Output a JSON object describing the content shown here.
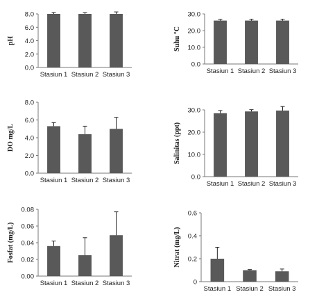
{
  "chart_data": [
    {
      "type": "bar",
      "ylabel": "pH",
      "categories": [
        "Stasiun 1",
        "Stasiun 2",
        "Stasiun 3"
      ],
      "values": [
        8.0,
        8.0,
        8.0
      ],
      "errors": [
        0.2,
        0.2,
        0.3
      ],
      "ylim": [
        0,
        8.0
      ],
      "yticks": [
        "0.0",
        "2.0",
        "4.0",
        "6.0",
        "8.0"
      ],
      "color": "#595959"
    },
    {
      "type": "bar",
      "ylabel": "Suhu °C",
      "categories": [
        "Stasiun 1",
        "Stasiun 2",
        "Stasiun 3"
      ],
      "values": [
        26.0,
        26.0,
        26.0
      ],
      "errors": [
        0.7,
        0.8,
        0.8
      ],
      "ylim": [
        0,
        30.0
      ],
      "yticks": [
        "0.0",
        "10.0",
        "20.0",
        "30.0"
      ],
      "color": "#595959"
    },
    {
      "type": "bar",
      "ylabel": "DO mg/L",
      "categories": [
        "Stasiun 1",
        "Stasiun 2",
        "Stasiun 3"
      ],
      "values": [
        5.3,
        4.4,
        5.0
      ],
      "errors": [
        0.4,
        0.9,
        1.3
      ],
      "ylim": [
        0,
        8.0
      ],
      "yticks": [
        "0.0",
        "2.0",
        "4.0",
        "6.0",
        "8.0"
      ],
      "color": "#595959"
    },
    {
      "type": "bar",
      "ylabel": "Salinitas (ppt)",
      "categories": [
        "Stasiun 1",
        "Stasiun 2",
        "Stasiun 3"
      ],
      "values": [
        28.5,
        29.3,
        29.7
      ],
      "errors": [
        1.2,
        0.8,
        1.8
      ],
      "ylim": [
        0,
        30.0
      ],
      "yticks": [
        "0.0",
        "10.0",
        "20.0",
        "30.0"
      ],
      "color": "#595959"
    },
    {
      "type": "bar",
      "ylabel": "Fosfat (mg/L)",
      "categories": [
        "Stasiun 1",
        "Stasiun 2",
        "Stasiun 3"
      ],
      "values": [
        0.036,
        0.025,
        0.049
      ],
      "errors": [
        0.006,
        0.021,
        0.028
      ],
      "ylim": [
        0,
        0.08
      ],
      "yticks": [
        "0.00",
        "0.02",
        "0.04",
        "0.06",
        "0.08"
      ],
      "color": "#595959"
    },
    {
      "type": "bar",
      "ylabel": "Nitrat (mg/L)",
      "categories": [
        "Stasiun 1",
        "Stasiun 2",
        "Stasiun 3"
      ],
      "values": [
        0.2,
        0.1,
        0.09
      ],
      "errors": [
        0.1,
        0.005,
        0.02
      ],
      "ylim": [
        0,
        0.6
      ],
      "yticks": [
        "0",
        "0.2",
        "0.4",
        "0.6"
      ],
      "color": "#595959"
    }
  ]
}
